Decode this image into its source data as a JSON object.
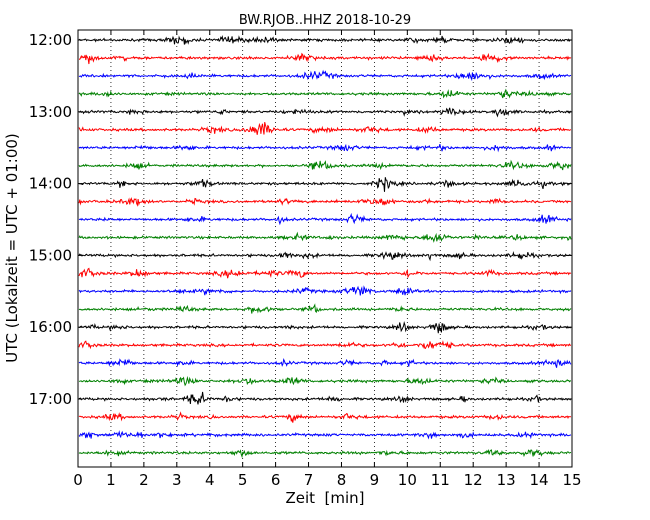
{
  "chart_data": {
    "type": "line",
    "subtype": "seismogram-helicorder",
    "title": "BW.RJOB..HHZ 2018-10-29",
    "xlabel": "Zeit  [min]",
    "ylabel": "UTC (Lokalzeit = UTC + 01:00)",
    "xlim": [
      0,
      15
    ],
    "x_ticks": [
      "0",
      "1",
      "2",
      "3",
      "4",
      "5",
      "6",
      "7",
      "8",
      "9",
      "10",
      "11",
      "12",
      "13",
      "14",
      "15"
    ],
    "y_tick_labels": [
      "12:00",
      "13:00",
      "14:00",
      "15:00",
      "16:00",
      "17:00"
    ],
    "grid": "vertical dotted lines at each minute",
    "row_interval_minutes": 15,
    "color_cycle": [
      "#000000",
      "#ff0000",
      "#0000ff",
      "#008000"
    ],
    "rows": [
      "12:00",
      "12:15",
      "12:30",
      "12:45",
      "13:00",
      "13:15",
      "13:30",
      "13:45",
      "14:00",
      "14:15",
      "14:30",
      "14:45",
      "15:00",
      "15:15",
      "15:30",
      "15:45",
      "16:00",
      "16:15",
      "16:30",
      "16:45",
      "17:00",
      "17:15",
      "17:30",
      "17:45"
    ]
  }
}
